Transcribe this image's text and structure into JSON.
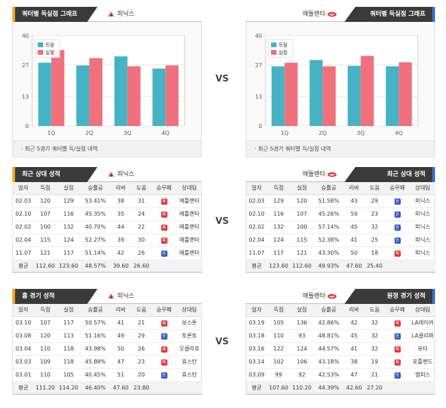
{
  "vs_label": "VS",
  "colors": {
    "points_for": "#45b3c4",
    "points_against": "#f0707b",
    "win": "#3355cc",
    "loss": "#e0353b",
    "tab_bg": "#3a3a3a",
    "left_accent": "#f5a623",
    "right_accent": "#3b6fd6"
  },
  "charts": {
    "left": {
      "title": "쿼터별 득실점 그래프",
      "team": "피닉스",
      "team_icon": "phoenix-logo-icon",
      "footer": "· 최근 5경기 쿼터별 득/실점 내역",
      "chart_data": {
        "type": "bar",
        "categories": [
          "1Q",
          "2Q",
          "3Q",
          "4Q"
        ],
        "series": [
          {
            "name": "득점",
            "values": [
              28,
              26.8,
              30.8,
              25.4
            ]
          },
          {
            "name": "실점",
            "values": [
              33.6,
              30,
              26.4,
              26.8
            ]
          }
        ],
        "yticks": [
          "0",
          "13",
          "27",
          "40"
        ],
        "ylim": [
          0,
          40
        ]
      }
    },
    "right": {
      "title": "쿼터별 득실점 그래프",
      "team": "애틀랜타",
      "team_icon": "hawks-logo-icon",
      "footer": "· 최근 5경기 쿼터별 득/실점 내역",
      "chart_data": {
        "type": "bar",
        "categories": [
          "1Q",
          "2Q",
          "3Q",
          "4Q"
        ],
        "series": [
          {
            "name": "득점",
            "values": [
              26.4,
              29.2,
              26.6,
              26.4
            ]
          },
          {
            "name": "실점",
            "values": [
              28,
              26.4,
              31,
              28.2
            ]
          }
        ],
        "yticks": [
          "0",
          "13",
          "27",
          "40"
        ],
        "ylim": [
          0,
          40
        ]
      }
    }
  },
  "columns": [
    "일자",
    "득점",
    "실점",
    "승률공",
    "리바",
    "도움",
    "승무패",
    "상대팀"
  ],
  "recent": {
    "left": {
      "title": "최근 상대 성적",
      "team": "피닉스",
      "rows": [
        [
          "02.03",
          "120",
          "129",
          "53.41%",
          "38",
          "31",
          "패",
          "애틀랜타"
        ],
        [
          "02.10",
          "107",
          "116",
          "45.35%",
          "35",
          "24",
          "패",
          "애틀랜타"
        ],
        [
          "02.02",
          "100",
          "132",
          "40.70%",
          "44",
          "22",
          "패",
          "애틀랜타"
        ],
        [
          "02.04",
          "115",
          "124",
          "52.27%",
          "39",
          "30",
          "패",
          "애틀랜타"
        ],
        [
          "11.07",
          "121",
          "117",
          "51.14%",
          "42",
          "26",
          "승",
          "애틀랜타"
        ]
      ],
      "avg": [
        "평균",
        "112.60",
        "123.60",
        "48.57%",
        "39.60",
        "26.60",
        "",
        ""
      ]
    },
    "right": {
      "title": "최근 상대 성적",
      "team": "애틀랜타",
      "rows": [
        [
          "02.03",
          "129",
          "120",
          "51.58%",
          "43",
          "29",
          "승",
          "피닉스"
        ],
        [
          "02.10",
          "116",
          "107",
          "45.26%",
          "59",
          "23",
          "승",
          "피닉스"
        ],
        [
          "02.02",
          "132",
          "100",
          "57.14%",
          "45",
          "32",
          "승",
          "피닉스"
        ],
        [
          "02.04",
          "124",
          "115",
          "52.38%",
          "41",
          "25",
          "승",
          "피닉스"
        ],
        [
          "11.07",
          "117",
          "121",
          "43.30%",
          "50",
          "18",
          "패",
          "피닉스"
        ]
      ],
      "avg": [
        "평균",
        "123.60",
        "112.60",
        "49.93%",
        "47.60",
        "25.40",
        "",
        ""
      ]
    }
  },
  "games": {
    "left": {
      "title": "홈 경기 성적",
      "team": "피닉스",
      "rows": [
        [
          "03.10",
          "107",
          "117",
          "50.57%",
          "41",
          "21",
          "패",
          "보스톤"
        ],
        [
          "03.08",
          "120",
          "113",
          "51.16%",
          "49",
          "29",
          "승",
          "토론토"
        ],
        [
          "03.04",
          "110",
          "118",
          "43.98%",
          "50",
          "26",
          "패",
          "오클라호"
        ],
        [
          "03.03",
          "109",
          "118",
          "45.88%",
          "47",
          "23",
          "패",
          "휴스턴"
        ],
        [
          "03.01",
          "110",
          "105",
          "40.45%",
          "51",
          "20",
          "승",
          "휴스턴"
        ]
      ],
      "avg": [
        "평균",
        "111.20",
        "114.20",
        "46.40%",
        "47.60",
        "23.80",
        "",
        ""
      ]
    },
    "right": {
      "title": "원정 경기 성적",
      "team": "애틀랜타",
      "rows": [
        [
          "03.19",
          "105",
          "136",
          "42.86%",
          "42",
          "32",
          "패",
          "LA레이커"
        ],
        [
          "03.18",
          "110",
          "93",
          "48.81%",
          "45",
          "32",
          "승",
          "LA클리퍼"
        ],
        [
          "03.16",
          "122",
          "124",
          "44.57%",
          "41",
          "32",
          "패",
          "유타"
        ],
        [
          "03.14",
          "102",
          "106",
          "43.18%",
          "38",
          "19",
          "패",
          "포틀랜드"
        ],
        [
          "03.09",
          "99",
          "92",
          "42.53%",
          "47",
          "21",
          "승",
          "멤피스"
        ]
      ],
      "avg": [
        "평균",
        "107.60",
        "110.20",
        "44.39%",
        "42.60",
        "27.20",
        "",
        ""
      ]
    }
  }
}
